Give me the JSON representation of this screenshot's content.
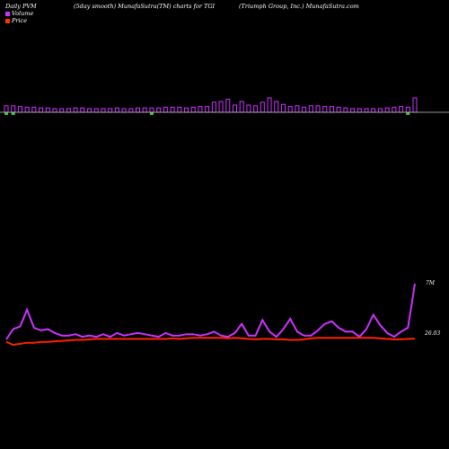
{
  "header": {
    "left": "Daily PVM",
    "middle": "(5day smooth) MunafaSutra(TM) charts for TGI",
    "right": "(Triumph Group, Inc.) MunafaSutra.com"
  },
  "legend": {
    "volume_label": "Volume",
    "price_label": "Price",
    "volume_color": "#cc33ff",
    "price_color": "#ff3300"
  },
  "labels": {
    "volume_end": "7M",
    "price_end": "26.03"
  },
  "colors": {
    "background": "#000000",
    "volume_up": "#cc33ff",
    "volume_down": "#33cc33",
    "volume_line": "#cc33ff",
    "price_line": "#ff2200",
    "baseline": "#cccccc"
  },
  "chart_data": [
    {
      "type": "bar",
      "name": "volume-bars",
      "values": [
        0.9,
        0.9,
        0.8,
        0.7,
        0.7,
        0.6,
        0.6,
        0.5,
        0.5,
        0.5,
        0.6,
        0.6,
        0.5,
        0.5,
        0.5,
        0.5,
        0.6,
        0.5,
        0.5,
        0.6,
        0.6,
        0.6,
        0.6,
        0.7,
        0.7,
        0.7,
        0.6,
        0.7,
        0.8,
        0.8,
        1.4,
        1.5,
        1.8,
        1.0,
        1.5,
        1.0,
        0.9,
        1.4,
        2.0,
        1.5,
        1.1,
        0.8,
        0.9,
        0.7,
        0.9,
        0.9,
        0.8,
        0.8,
        0.7,
        0.6,
        0.5,
        0.5,
        0.5,
        0.5,
        0.5,
        0.6,
        0.7,
        0.8,
        0.7,
        2.0
      ],
      "down_indices": [
        0,
        1,
        21,
        58
      ]
    },
    {
      "type": "line",
      "series": [
        {
          "name": "Volume",
          "values": [
            2.7,
            3.5,
            3.7,
            5.0,
            3.6,
            3.4,
            3.5,
            3.2,
            3.0,
            3.0,
            3.1,
            2.9,
            3.0,
            2.9,
            3.1,
            2.9,
            3.2,
            3.0,
            3.1,
            3.2,
            3.1,
            3.0,
            2.9,
            3.2,
            3.0,
            3.0,
            3.1,
            3.1,
            3.0,
            3.1,
            3.3,
            3.0,
            2.9,
            3.2,
            3.9,
            3.0,
            3.0,
            4.2,
            3.3,
            2.9,
            3.5,
            4.3,
            3.3,
            3.0,
            3.0,
            3.4,
            3.9,
            4.1,
            3.6,
            3.3,
            3.3,
            2.9,
            3.5,
            4.6,
            3.8,
            3.2,
            2.9,
            3.3,
            3.6,
            7.0
          ],
          "series_extra_note": ""
        },
        {
          "name": "Price",
          "values": [
            25.7,
            25.4,
            25.5,
            25.6,
            25.6,
            25.7,
            25.7,
            25.75,
            25.8,
            25.85,
            25.9,
            25.9,
            25.95,
            26.0,
            26.0,
            26.0,
            26.0,
            26.0,
            26.0,
            26.0,
            26.0,
            26.0,
            26.0,
            26.0,
            26.05,
            26.0,
            26.05,
            26.1,
            26.1,
            26.1,
            26.1,
            26.1,
            26.05,
            26.1,
            26.05,
            26.0,
            25.95,
            26.0,
            26.0,
            25.95,
            25.95,
            25.9,
            25.9,
            25.95,
            26.05,
            26.1,
            26.1,
            26.1,
            26.1,
            26.1,
            26.1,
            26.1,
            26.1,
            26.1,
            26.05,
            26.0,
            25.95,
            25.95,
            26.0,
            26.03
          ]
        }
      ]
    }
  ]
}
